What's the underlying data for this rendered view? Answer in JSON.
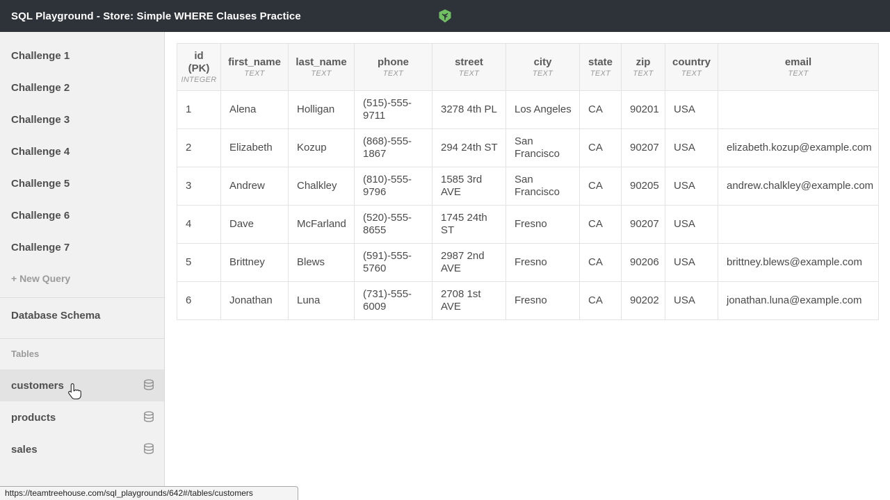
{
  "topbar": {
    "title": "SQL Playground - Store: Simple WHERE Clauses Practice"
  },
  "sidebar": {
    "challenges": [
      "Challenge 1",
      "Challenge 2",
      "Challenge 3",
      "Challenge 4",
      "Challenge 5",
      "Challenge 6",
      "Challenge 7"
    ],
    "new_query_label": "+ New Query",
    "schema_heading": "Database Schema",
    "tables_heading": "Tables",
    "tables": [
      {
        "name": "customers",
        "active": true
      },
      {
        "name": "products",
        "active": false
      },
      {
        "name": "sales",
        "active": false
      }
    ]
  },
  "results_table": {
    "columns": [
      {
        "name": "id\n(PK)",
        "type": "INTEGER"
      },
      {
        "name": "first_name",
        "type": "TEXT"
      },
      {
        "name": "last_name",
        "type": "TEXT"
      },
      {
        "name": "phone",
        "type": "TEXT"
      },
      {
        "name": "street",
        "type": "TEXT"
      },
      {
        "name": "city",
        "type": "TEXT"
      },
      {
        "name": "state",
        "type": "TEXT"
      },
      {
        "name": "zip",
        "type": "TEXT"
      },
      {
        "name": "country",
        "type": "TEXT"
      },
      {
        "name": "email",
        "type": "TEXT"
      }
    ],
    "rows": [
      [
        "1",
        "Alena",
        "Holligan",
        "(515)-555-9711",
        "3278 4th PL",
        "Los Angeles",
        "CA",
        "90201",
        "USA",
        ""
      ],
      [
        "2",
        "Elizabeth",
        "Kozup",
        "(868)-555-1867",
        "294 24th ST",
        "San Francisco",
        "CA",
        "90207",
        "USA",
        "elizabeth.kozup@example.com"
      ],
      [
        "3",
        "Andrew",
        "Chalkley",
        "(810)-555-9796",
        "1585 3rd AVE",
        "San Francisco",
        "CA",
        "90205",
        "USA",
        "andrew.chalkley@example.com"
      ],
      [
        "4",
        "Dave",
        "McFarland",
        "(520)-555-8655",
        "1745 24th ST",
        "Fresno",
        "CA",
        "90207",
        "USA",
        ""
      ],
      [
        "5",
        "Brittney",
        "Blews",
        "(591)-555-5760",
        "2987 2nd AVE",
        "Fresno",
        "CA",
        "90206",
        "USA",
        "brittney.blews@example.com"
      ],
      [
        "6",
        "Jonathan",
        "Luna",
        "(731)-555-6009",
        "2708 1st AVE",
        "Fresno",
        "CA",
        "90202",
        "USA",
        "jonathan.luna@example.com"
      ]
    ]
  },
  "statusbar": {
    "url": "https://teamtreehouse.com/sql_playgrounds/642#/tables/customers"
  },
  "colors": {
    "topbar_bg": "#2d3339",
    "logo_green": "#70bf63",
    "active_row_bg": "#e3e3e3"
  }
}
